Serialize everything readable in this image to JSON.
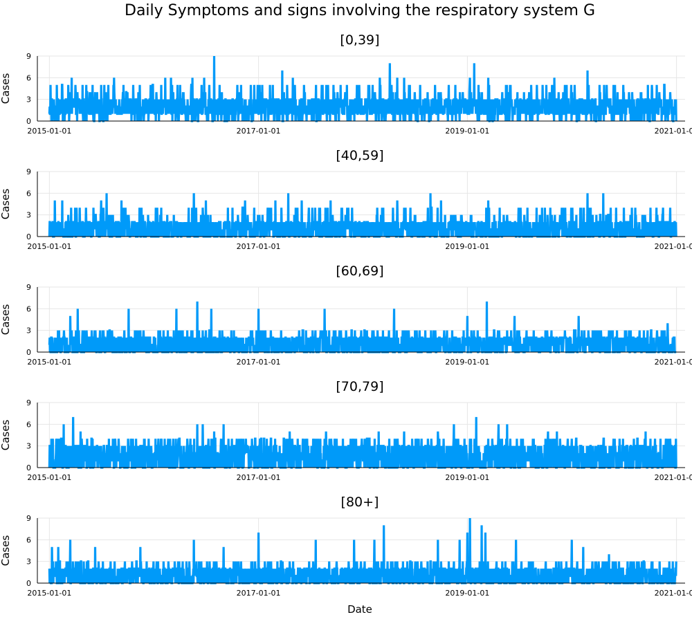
{
  "chart_data": {
    "type": "line",
    "title": "Daily Symptoms and signs involving the respiratory system G",
    "xlabel": "Date",
    "ylabel": "Cases",
    "x_range": [
      "2015-01-01",
      "2020-12-31"
    ],
    "x_ticks": [
      "2015-01-01",
      "2017-01-01",
      "2019-01-01",
      "2021-01-01"
    ],
    "y_ticks": [
      0,
      3,
      6,
      9
    ],
    "ylim": [
      0,
      9
    ],
    "grid": true,
    "legend": "none",
    "colors": {
      "series": "#009af9"
    },
    "panels": [
      {
        "title": "[0,39]",
        "baseline": [
          1,
          2,
          3
        ],
        "typical_max": 5,
        "peaks": [
          {
            "date": "2015-01-05",
            "value": 5
          },
          {
            "date": "2015-02-15",
            "value": 5
          },
          {
            "date": "2015-03-20",
            "value": 6
          },
          {
            "date": "2015-05-10",
            "value": 5
          },
          {
            "date": "2015-07-01",
            "value": 5
          },
          {
            "date": "2015-08-15",
            "value": 6
          },
          {
            "date": "2015-09-15",
            "value": 4
          },
          {
            "date": "2015-12-20",
            "value": 3
          },
          {
            "date": "2016-02-10",
            "value": 6
          },
          {
            "date": "2016-03-01",
            "value": 6
          },
          {
            "date": "2016-05-15",
            "value": 6
          },
          {
            "date": "2016-06-25",
            "value": 6
          },
          {
            "date": "2016-07-30",
            "value": 9
          },
          {
            "date": "2016-11-01",
            "value": 5
          },
          {
            "date": "2017-03-25",
            "value": 7
          },
          {
            "date": "2017-05-01",
            "value": 6
          },
          {
            "date": "2017-08-10",
            "value": 5
          },
          {
            "date": "2017-09-20",
            "value": 5
          },
          {
            "date": "2018-01-20",
            "value": 5
          },
          {
            "date": "2018-03-01",
            "value": 6
          },
          {
            "date": "2018-04-05",
            "value": 8
          },
          {
            "date": "2018-05-01",
            "value": 6
          },
          {
            "date": "2018-05-25",
            "value": 6
          },
          {
            "date": "2018-07-20",
            "value": 5
          },
          {
            "date": "2018-09-10",
            "value": 5
          },
          {
            "date": "2018-11-20",
            "value": 5
          },
          {
            "date": "2019-01-10",
            "value": 6
          },
          {
            "date": "2019-01-25",
            "value": 8
          },
          {
            "date": "2019-03-15",
            "value": 6
          },
          {
            "date": "2019-06-01",
            "value": 5
          },
          {
            "date": "2019-08-10",
            "value": 4
          },
          {
            "date": "2019-11-01",
            "value": 6
          },
          {
            "date": "2020-02-25",
            "value": 7
          },
          {
            "date": "2020-06-20",
            "value": 3
          },
          {
            "date": "2020-10-01",
            "value": 3
          },
          {
            "date": "2020-12-10",
            "value": 4
          }
        ]
      },
      {
        "title": "[40,59]",
        "baseline": [
          0,
          1,
          2
        ],
        "typical_max": 4,
        "peaks": [
          {
            "date": "2015-01-20",
            "value": 5
          },
          {
            "date": "2015-02-15",
            "value": 5
          },
          {
            "date": "2015-07-01",
            "value": 5
          },
          {
            "date": "2015-07-20",
            "value": 6
          },
          {
            "date": "2015-09-10",
            "value": 5
          },
          {
            "date": "2016-05-20",
            "value": 6
          },
          {
            "date": "2016-07-01",
            "value": 5
          },
          {
            "date": "2016-11-15",
            "value": 5
          },
          {
            "date": "2017-03-01",
            "value": 5
          },
          {
            "date": "2017-04-15",
            "value": 6
          },
          {
            "date": "2017-06-01",
            "value": 5
          },
          {
            "date": "2017-09-10",
            "value": 5
          },
          {
            "date": "2018-05-01",
            "value": 5
          },
          {
            "date": "2018-08-25",
            "value": 6
          },
          {
            "date": "2018-10-01",
            "value": 5
          },
          {
            "date": "2019-03-15",
            "value": 5
          },
          {
            "date": "2020-02-25",
            "value": 6
          },
          {
            "date": "2020-04-20",
            "value": 6
          },
          {
            "date": "2020-12-10",
            "value": 4
          }
        ]
      },
      {
        "title": "[60,69]",
        "baseline": [
          0,
          1,
          2
        ],
        "typical_max": 3,
        "peaks": [
          {
            "date": "2015-03-15",
            "value": 5
          },
          {
            "date": "2015-04-10",
            "value": 6
          },
          {
            "date": "2015-10-05",
            "value": 6
          },
          {
            "date": "2016-03-20",
            "value": 6
          },
          {
            "date": "2016-06-01",
            "value": 7
          },
          {
            "date": "2016-07-20",
            "value": 6
          },
          {
            "date": "2017-01-01",
            "value": 6
          },
          {
            "date": "2017-08-20",
            "value": 6
          },
          {
            "date": "2018-04-20",
            "value": 6
          },
          {
            "date": "2019-01-01",
            "value": 5
          },
          {
            "date": "2019-03-10",
            "value": 7
          },
          {
            "date": "2019-06-15",
            "value": 5
          },
          {
            "date": "2020-01-25",
            "value": 5
          },
          {
            "date": "2020-12-01",
            "value": 4
          }
        ]
      },
      {
        "title": "[70,79]",
        "baseline": [
          0,
          1,
          2,
          3
        ],
        "typical_max": 4,
        "peaks": [
          {
            "date": "2015-01-25",
            "value": 4
          },
          {
            "date": "2015-02-20",
            "value": 6
          },
          {
            "date": "2015-03-25",
            "value": 7
          },
          {
            "date": "2015-04-20",
            "value": 5
          },
          {
            "date": "2016-06-01",
            "value": 6
          },
          {
            "date": "2016-06-20",
            "value": 6
          },
          {
            "date": "2016-07-30",
            "value": 5
          },
          {
            "date": "2016-09-01",
            "value": 6
          },
          {
            "date": "2017-04-20",
            "value": 5
          },
          {
            "date": "2017-08-25",
            "value": 5
          },
          {
            "date": "2018-02-25",
            "value": 5
          },
          {
            "date": "2018-05-25",
            "value": 5
          },
          {
            "date": "2018-09-20",
            "value": 5
          },
          {
            "date": "2018-11-15",
            "value": 6
          },
          {
            "date": "2019-02-01",
            "value": 7
          },
          {
            "date": "2019-04-20",
            "value": 6
          },
          {
            "date": "2019-05-20",
            "value": 6
          },
          {
            "date": "2019-10-10",
            "value": 5
          },
          {
            "date": "2019-11-10",
            "value": 5
          },
          {
            "date": "2020-09-15",
            "value": 5
          },
          {
            "date": "2020-12-01",
            "value": 4
          }
        ]
      },
      {
        "title": "[80+]",
        "baseline": [
          0,
          1,
          2
        ],
        "typical_max": 3,
        "peaks": [
          {
            "date": "2015-01-10",
            "value": 5
          },
          {
            "date": "2015-02-01",
            "value": 5
          },
          {
            "date": "2015-03-15",
            "value": 6
          },
          {
            "date": "2015-06-10",
            "value": 5
          },
          {
            "date": "2015-11-15",
            "value": 5
          },
          {
            "date": "2016-05-20",
            "value": 6
          },
          {
            "date": "2016-09-01",
            "value": 5
          },
          {
            "date": "2017-01-01",
            "value": 7
          },
          {
            "date": "2017-07-20",
            "value": 6
          },
          {
            "date": "2017-12-01",
            "value": 6
          },
          {
            "date": "2018-02-10",
            "value": 6
          },
          {
            "date": "2018-03-15",
            "value": 8
          },
          {
            "date": "2018-09-20",
            "value": 6
          },
          {
            "date": "2018-12-05",
            "value": 6
          },
          {
            "date": "2019-01-01",
            "value": 7
          },
          {
            "date": "2019-01-10",
            "value": 9
          },
          {
            "date": "2019-02-20",
            "value": 8
          },
          {
            "date": "2019-03-05",
            "value": 7
          },
          {
            "date": "2019-06-20",
            "value": 6
          },
          {
            "date": "2020-01-01",
            "value": 6
          },
          {
            "date": "2020-02-10",
            "value": 5
          },
          {
            "date": "2020-05-10",
            "value": 4
          }
        ]
      }
    ]
  }
}
